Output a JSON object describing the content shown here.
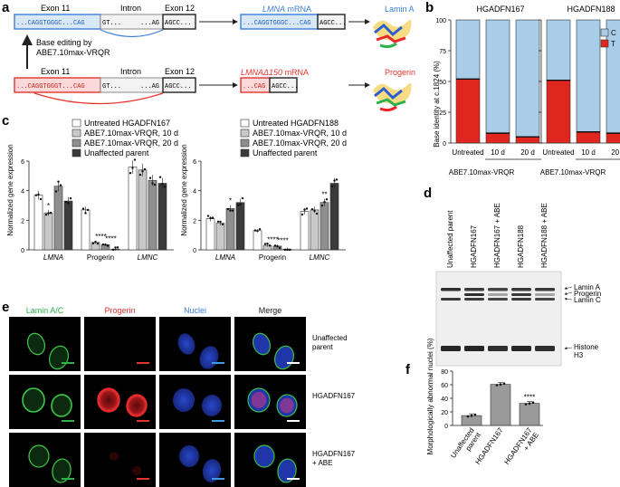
{
  "panels": {
    "a": "a",
    "b": "b",
    "c": "c",
    "d": "d",
    "e": "e",
    "f": "f"
  },
  "colors": {
    "blue": "#3b7dd8",
    "red": "#e3342f",
    "green": "#2db34a",
    "light_blue": "#a9cde9",
    "bar_red": "#e0271f",
    "nuclei": "#2b49d6",
    "progerin_cell": "#e8272b",
    "lamin_cell": "#3ec84a"
  },
  "panel_a": {
    "top_exon11": "Exon 11",
    "top_intron": "Intron",
    "top_exon12": "Exon 12",
    "top_seq1": "...CAGGTGGGC...CAG",
    "top_seq2": "GT...",
    "top_seq3": "...AG",
    "top_seq4": "AGCC...",
    "top_mrna_prefix": "LMNA",
    "top_mrna_suffix": " mRNA",
    "top_mrna_seq1": "...CAGGTGGGC...CAG",
    "top_mrna_seq2": "AGCC...",
    "top_protein": "Lamin A",
    "edit_line1": "Base editing by",
    "edit_line2": "ABE7.10max-VRQR",
    "bot_exon11": "Exon 11",
    "bot_intron": "Intron",
    "bot_exon12": "Exon 12",
    "bot_seq1": "...CAGGTGGGT...CAG",
    "bot_seq2": "GT...",
    "bot_seq3": "...AG",
    "bot_seq4": "AGCC...",
    "bot_mrna_prefix": "LMNAΔ150",
    "bot_mrna_suffix": " mRNA",
    "bot_mrna_seq1": "...CAG",
    "bot_mrna_seq2": "AGCC...",
    "bot_protein": "Progerin"
  },
  "panel_b": {
    "ylabel": "Base identity at c.1824 (%)",
    "legend_c": "C",
    "legend_t": "T",
    "charts": [
      {
        "title": "HGADFN167",
        "categories": [
          "Untreated",
          "10 d",
          "20 d"
        ],
        "T": [
          52,
          8,
          5
        ]
      },
      {
        "title": "HGADFN188",
        "categories": [
          "Untreated",
          "10 d",
          "20 d"
        ],
        "T": [
          51,
          9,
          8
        ]
      }
    ],
    "yticks": [
      "0",
      "25",
      "50",
      "75",
      "100"
    ],
    "group_label": "ABE7.10max-VRQR"
  },
  "panel_c": {
    "ylabel": "Normalized gene expression",
    "legend_left": [
      "Untreated HGADFN167",
      "ABE7.10max-VRQR, 10 d",
      "ABE7.10max-VRQR, 20 d",
      "Unaffected parent"
    ],
    "legend_right": [
      "Untreated HGADFN188",
      "ABE7.10max-VRQR, 10 d",
      "ABE7.10max-VRQR, 20 d",
      "Unaffected parent"
    ],
    "yticks": [
      "0",
      "2",
      "4",
      "6"
    ],
    "groups": [
      "LMNA",
      "Progerin",
      "LMNC"
    ],
    "group_italic": [
      true,
      false,
      true
    ],
    "left_values": [
      [
        3.7,
        2.5,
        4.3,
        3.3
      ],
      [
        2.7,
        0.5,
        0.35,
        0.05
      ],
      [
        5.6,
        5.4,
        4.7,
        4.5
      ]
    ],
    "right_values": [
      [
        2.1,
        1.8,
        2.8,
        3.2
      ],
      [
        1.3,
        0.3,
        0.25,
        0.05
      ],
      [
        2.6,
        2.7,
        3.2,
        4.5
      ]
    ],
    "left_stars": [
      "",
      "*",
      "",
      "",
      "",
      "****",
      "****",
      "",
      "",
      "",
      "",
      ""
    ],
    "right_stars": [
      "",
      "",
      "*",
      "",
      "",
      "****",
      "****",
      "",
      "",
      "",
      "**",
      ""
    ]
  },
  "panel_d": {
    "lanes": [
      "Unaffected parent",
      "HGADFN167",
      "HGADFN167 + ABE",
      "HGADFN188",
      "HGADFN188 + ABE"
    ],
    "band_labels": [
      "Lamin A",
      "Progerin",
      "Lamin C",
      "Histone H3"
    ]
  },
  "panel_e": {
    "col_labels": [
      "Lamin A/C",
      "Progerin",
      "Nuclei",
      "Merge"
    ],
    "row_labels": [
      "Unaffected parent",
      "HGADFN167",
      "HGADFN167 + ABE"
    ]
  },
  "panel_f": {
    "ylabel": "Morphologically abnormal nuclei (%)",
    "yticks": [
      "0",
      "20",
      "40",
      "60",
      "80"
    ],
    "categories": [
      "Unaffected parent",
      "HGADFN167",
      "HGADFN167 + ABE"
    ],
    "values": [
      14.5,
      60.5,
      32.5
    ],
    "stars": [
      "",
      "",
      "****"
    ]
  }
}
